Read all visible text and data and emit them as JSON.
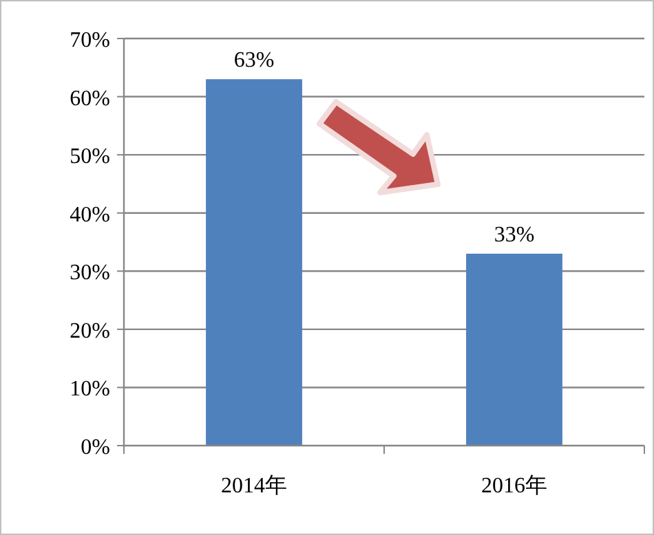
{
  "chart_data": {
    "type": "bar",
    "categories": [
      "2014年",
      "2016年"
    ],
    "values": [
      63,
      33
    ],
    "color": "#4f81bd",
    "value_labels": [
      "63%",
      "33%"
    ],
    "ylim": [
      0,
      70
    ],
    "yticks": [
      {
        "value": 0,
        "label": "0%"
      },
      {
        "value": 10,
        "label": "10%"
      },
      {
        "value": 20,
        "label": "20%"
      },
      {
        "value": 30,
        "label": "30%"
      },
      {
        "value": 40,
        "label": "40%"
      },
      {
        "value": 50,
        "label": "50%"
      },
      {
        "value": 60,
        "label": "60%"
      },
      {
        "value": 70,
        "label": "70%"
      }
    ],
    "grid": "y"
  }
}
